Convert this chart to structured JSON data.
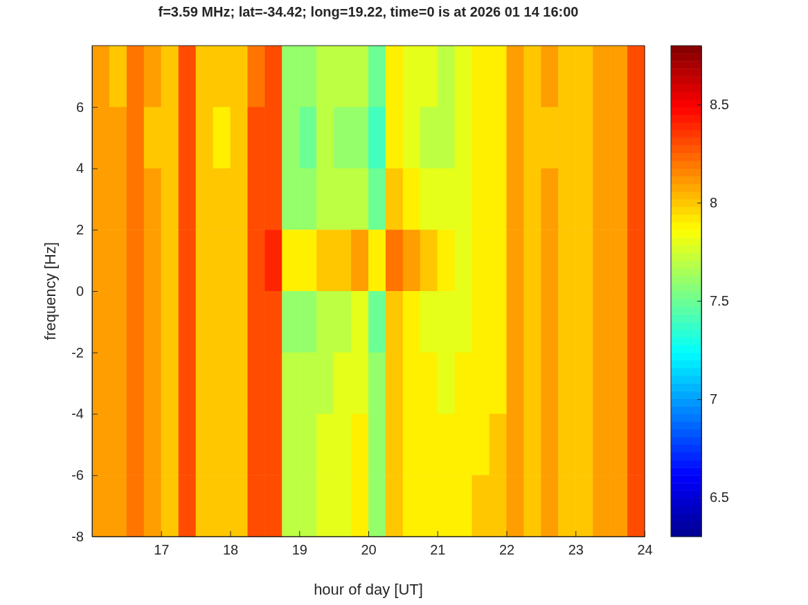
{
  "chart_data": {
    "type": "heatmap",
    "title": "f=3.59 MHz;  lat=-34.42; long=19.22, time=0 is at 2026 01 14 16:00",
    "xlabel": "hour of day [UT]",
    "ylabel": "frequency [Hz]",
    "xlim": [
      16,
      24
    ],
    "ylim": [
      -8,
      8
    ],
    "xticks": [
      17,
      18,
      19,
      20,
      21,
      22,
      23,
      24
    ],
    "yticks": [
      -8,
      -6,
      -4,
      -2,
      0,
      2,
      4,
      6
    ],
    "clim": [
      6.3,
      8.8
    ],
    "cticks": [
      6.5,
      7,
      7.5,
      8,
      8.5
    ],
    "cells": [
      [
        8.1,
        8.0,
        8.2,
        8.1,
        8.0,
        8.3,
        8.0,
        8.0,
        8.0,
        8.2,
        8.3,
        7.6,
        7.6,
        7.7,
        7.7,
        7.7,
        7.5,
        7.9,
        7.8,
        7.8,
        7.7,
        7.8,
        7.9,
        7.9,
        8.1,
        8.0,
        8.1,
        8.0,
        8.0,
        8.1,
        8.1,
        8.3
      ],
      [
        8.1,
        8.1,
        8.2,
        8.0,
        8.0,
        8.3,
        8.0,
        7.9,
        8.0,
        8.3,
        8.3,
        7.6,
        7.5,
        7.7,
        7.6,
        7.6,
        7.4,
        7.9,
        7.8,
        7.7,
        7.7,
        7.8,
        7.9,
        7.9,
        8.1,
        8.0,
        8.0,
        8.0,
        8.0,
        8.1,
        8.1,
        8.3
      ],
      [
        8.1,
        8.1,
        8.2,
        8.1,
        8.0,
        8.3,
        8.0,
        8.0,
        8.0,
        8.3,
        8.3,
        7.6,
        7.6,
        7.7,
        7.7,
        7.7,
        7.5,
        8.0,
        7.9,
        7.8,
        7.8,
        7.8,
        7.9,
        7.9,
        8.1,
        8.0,
        8.1,
        8.0,
        8.0,
        8.1,
        8.1,
        8.3
      ],
      [
        8.1,
        8.1,
        8.2,
        8.1,
        8.0,
        8.3,
        8.0,
        8.0,
        8.0,
        8.3,
        8.4,
        7.9,
        7.9,
        8.0,
        8.0,
        8.1,
        7.9,
        8.2,
        8.1,
        8.0,
        7.9,
        7.8,
        7.9,
        7.9,
        8.1,
        8.0,
        8.1,
        8.0,
        8.0,
        8.1,
        8.1,
        8.3
      ],
      [
        8.1,
        8.1,
        8.2,
        8.1,
        8.0,
        8.3,
        8.0,
        8.0,
        8.0,
        8.3,
        8.3,
        7.6,
        7.6,
        7.7,
        7.7,
        7.8,
        7.5,
        8.0,
        7.9,
        7.8,
        7.8,
        7.8,
        7.9,
        7.9,
        8.1,
        8.0,
        8.1,
        8.0,
        8.0,
        8.1,
        8.1,
        8.3
      ],
      [
        8.1,
        8.1,
        8.2,
        8.1,
        8.0,
        8.3,
        8.0,
        8.0,
        8.0,
        8.3,
        8.3,
        7.7,
        7.7,
        7.7,
        7.8,
        7.8,
        7.6,
        8.0,
        7.9,
        7.9,
        7.8,
        7.9,
        7.9,
        7.9,
        8.1,
        8.0,
        8.1,
        8.0,
        8.0,
        8.1,
        8.1,
        8.3
      ],
      [
        8.1,
        8.1,
        8.2,
        8.1,
        8.0,
        8.3,
        8.0,
        8.0,
        8.0,
        8.3,
        8.3,
        7.7,
        7.7,
        7.8,
        7.8,
        7.9,
        7.6,
        8.0,
        7.9,
        7.9,
        7.9,
        7.9,
        7.9,
        8.0,
        8.1,
        8.0,
        8.1,
        8.0,
        8.0,
        8.1,
        8.1,
        8.3
      ],
      [
        8.1,
        8.1,
        8.2,
        8.1,
        8.0,
        8.3,
        8.0,
        8.0,
        8.0,
        8.3,
        8.3,
        7.7,
        7.7,
        7.8,
        7.8,
        7.9,
        7.6,
        8.0,
        7.9,
        7.9,
        7.9,
        7.9,
        8.0,
        8.0,
        8.1,
        8.0,
        8.1,
        8.0,
        8.0,
        8.1,
        8.1,
        8.3
      ]
    ]
  }
}
